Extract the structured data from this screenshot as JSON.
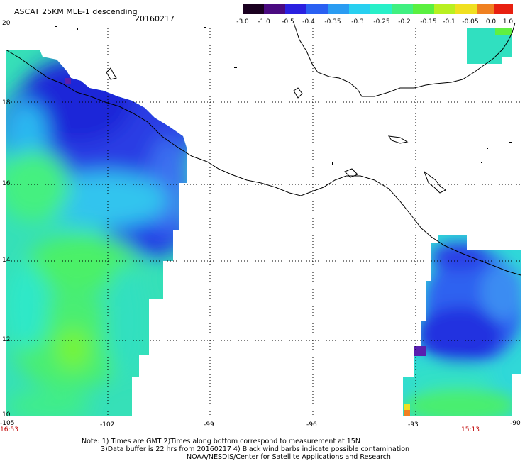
{
  "header": {
    "title": "ASCAT 25KM MLE-1 descending",
    "date": "20160217"
  },
  "colorbar": {
    "labels": [
      "-3.0",
      "-1.0",
      "-0.5",
      "-0.4",
      "-0.35",
      "-0.3",
      "-0.25",
      "-0.2",
      "-0.15",
      "-0.1",
      "-0.05",
      "0.0",
      "1.0"
    ]
  },
  "axes": {
    "lon_labels": [
      "-105",
      "-102",
      "-99",
      "-96",
      "-93",
      "-90"
    ],
    "lat_labels": [
      "20",
      "18",
      "16",
      "14",
      "12",
      "10"
    ],
    "left_time": "16:53",
    "right_time": "15:13"
  },
  "notes": {
    "line1": "Note: 1) Times are GMT 2)Times along bottom correspond to measurement at 15N",
    "line2": "3)Data buffer is 22 hrs from 20160217 4) Black wind barbs indicate possible contamination",
    "line3": "NOAA/NESDIS/Center for Satellite Applications and Research"
  },
  "colors": {
    "deep_blue": "#1e2ee0",
    "blue": "#3a6cf5",
    "light_blue": "#2fb4f0",
    "cyan": "#26e8d4",
    "green": "#44f06a",
    "bright_green": "#6cf23a",
    "purple": "#5a1fb0",
    "yellow": "#f0e020",
    "coast": "#000000",
    "grid": "#000000"
  }
}
